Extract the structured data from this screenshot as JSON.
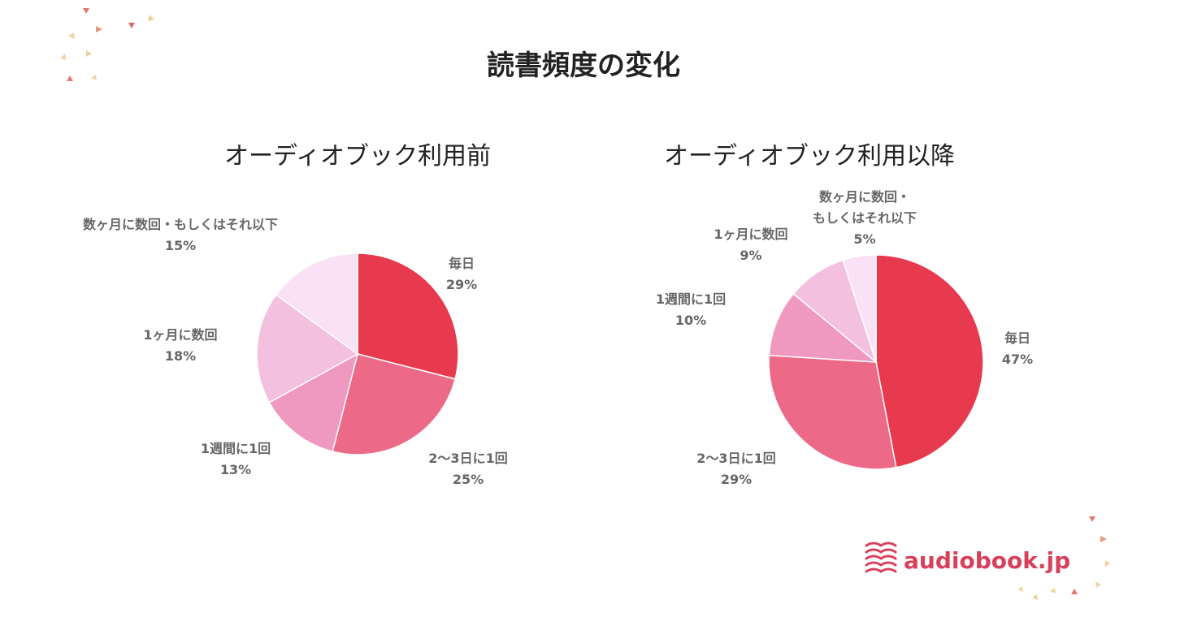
{
  "title": "読書頻度の変化",
  "brand": {
    "name": "audiobook.jp",
    "color": "#d8405a"
  },
  "chart_data": [
    {
      "type": "pie",
      "title": "オーディオブック利用前",
      "slices": [
        {
          "label": "毎日",
          "value": 29,
          "pct_text": "29%",
          "color": "#e83a4e"
        },
        {
          "label": "2〜3日に1回",
          "value": 25,
          "pct_text": "25%",
          "color": "#ec6a88"
        },
        {
          "label": "1週間に1回",
          "value": 13,
          "pct_text": "13%",
          "color": "#ef98c0"
        },
        {
          "label": "1ヶ月に数回",
          "value": 18,
          "pct_text": "18%",
          "color": "#f4c0e0"
        },
        {
          "label": "数ヶ月に数回・もしくはそれ以下",
          "value": 15,
          "pct_text": "15%",
          "color": "#f9e2f6"
        }
      ]
    },
    {
      "type": "pie",
      "title": "オーディオブック利用以降",
      "slices": [
        {
          "label": "毎日",
          "value": 47,
          "pct_text": "47%",
          "color": "#e83a4e"
        },
        {
          "label": "2〜3日に1回",
          "value": 29,
          "pct_text": "29%",
          "color": "#ec6a88"
        },
        {
          "label": "1週間に1回",
          "value": 10,
          "pct_text": "10%",
          "color": "#ef98c0"
        },
        {
          "label": "1ヶ月に数回",
          "value": 9,
          "pct_text": "9%",
          "color": "#f4c0e0"
        },
        {
          "label": "数ヶ月に数回・\nもしくはそれ以下",
          "value": 5,
          "pct_text": "5%",
          "color": "#f9e2f6"
        }
      ]
    }
  ]
}
